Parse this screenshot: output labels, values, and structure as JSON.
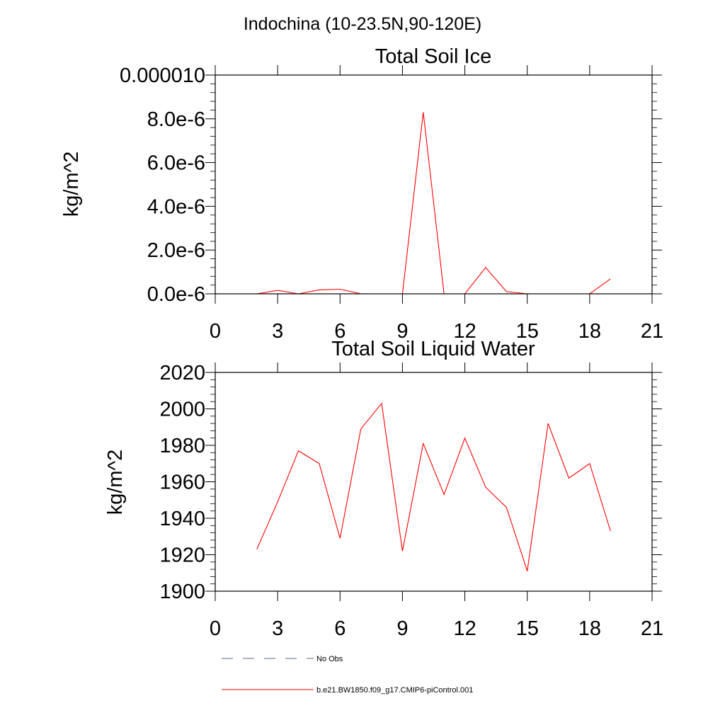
{
  "figure_title": "Indochina (10-23.5N,90-120E)",
  "legend": [
    {
      "label": "No Obs",
      "style": "dashed",
      "color": "#5a6a8a"
    },
    {
      "label": "b.e21.BW1850.f09_g17.CMIP6-piControl.001",
      "style": "solid",
      "color": "#ff0000"
    }
  ],
  "chart_data": [
    {
      "type": "line",
      "title": "Total Soil Ice",
      "ylabel": "kg/m^2",
      "xlabel": "",
      "xlim": [
        0,
        21
      ],
      "ylim": [
        0,
        1e-05
      ],
      "xticks": [
        0,
        3,
        6,
        9,
        12,
        15,
        18,
        21
      ],
      "xtick_labels": [
        "0",
        "3",
        "6",
        "9",
        "12",
        "15",
        "18",
        "21"
      ],
      "yticks": [
        0,
        2e-06,
        4e-06,
        6e-06,
        8e-06,
        1e-05
      ],
      "ytick_labels": [
        "0.0e-6",
        "2.0e-6",
        "4.0e-6",
        "6.0e-6",
        "8.0e-6",
        "0.000010"
      ],
      "grid": false,
      "series": [
        {
          "name": "b.e21.BW1850.f09_g17.CMIP6-piControl.001",
          "color": "#ff0000",
          "x": [
            2,
            3,
            4,
            5,
            6,
            7,
            8,
            9,
            10,
            11,
            12,
            13,
            14,
            15,
            16,
            17,
            18,
            19
          ],
          "y": [
            0,
            1.6e-07,
            0,
            1.8e-07,
            2.1e-07,
            0,
            0,
            0,
            8.3e-06,
            0,
            0,
            1.2e-06,
            1e-07,
            0,
            0,
            0,
            0,
            6.8e-07
          ]
        }
      ]
    },
    {
      "type": "line",
      "title": "Total Soil Liquid Water",
      "ylabel": "kg/m^2",
      "xlabel": "",
      "xlim": [
        0,
        21
      ],
      "ylim": [
        1900,
        2020
      ],
      "xticks": [
        0,
        3,
        6,
        9,
        12,
        15,
        18,
        21
      ],
      "xtick_labels": [
        "0",
        "3",
        "6",
        "9",
        "12",
        "15",
        "18",
        "21"
      ],
      "yticks": [
        1900,
        1920,
        1940,
        1960,
        1980,
        2000,
        2020
      ],
      "ytick_labels": [
        "1900",
        "1920",
        "1940",
        "1960",
        "1980",
        "2000",
        "2020"
      ],
      "grid": false,
      "series": [
        {
          "name": "b.e21.BW1850.f09_g17.CMIP6-piControl.001",
          "color": "#ff0000",
          "x": [
            2,
            3,
            4,
            5,
            6,
            7,
            8,
            9,
            10,
            11,
            12,
            13,
            14,
            15,
            16,
            17,
            18,
            19
          ],
          "y": [
            1923,
            1949,
            1977,
            1970,
            1929,
            1989,
            2003,
            1922,
            1981,
            1953,
            1984,
            1957,
            1946,
            1911,
            1992,
            1962,
            1970,
            1933
          ]
        }
      ]
    }
  ]
}
